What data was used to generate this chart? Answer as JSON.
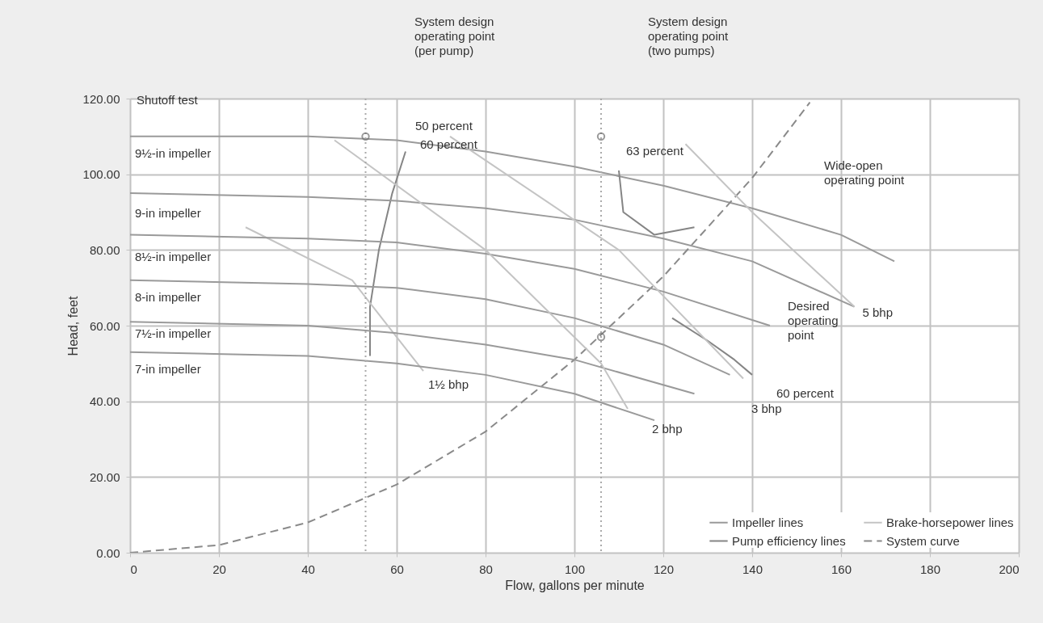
{
  "chart_data": {
    "type": "line",
    "xlabel": "Flow, gallons per minute",
    "ylabel": "Head, feet",
    "xlim": [
      0,
      200
    ],
    "xticks": [
      0,
      20,
      40,
      60,
      80,
      100,
      120,
      140,
      160,
      180,
      200
    ],
    "ylim": [
      0,
      120
    ],
    "yticks": [
      {
        "value": 0,
        "label": "0.00"
      },
      {
        "value": 20,
        "label": "20.00"
      },
      {
        "value": 40,
        "label": "40.00"
      },
      {
        "value": 60,
        "label": "60.00"
      },
      {
        "value": 80,
        "label": "80.00"
      },
      {
        "value": 100,
        "label": "100.00"
      },
      {
        "value": 120,
        "label": "120.00"
      }
    ],
    "grid": true,
    "legend": "bottom right",
    "series": [
      {
        "name": "Impeller lines",
        "color": "#9a9a9a",
        "x": [
          0,
          40,
          60,
          80,
          100,
          120,
          140,
          160,
          172
        ],
        "values": [
          110,
          110,
          109,
          106,
          102,
          97,
          91,
          84,
          77
        ]
      },
      {
        "name": "Pump efficiency lines",
        "color": "#858585",
        "x": [
          62,
          59,
          56,
          54,
          54
        ],
        "values": [
          106,
          95,
          80,
          65,
          52
        ]
      },
      {
        "name": "Brake-horsepower lines",
        "color": "#c4c4c4",
        "x": [
          26,
          50,
          66
        ],
        "values": [
          86,
          72,
          48
        ]
      },
      {
        "name": "System curve",
        "color": "#8a8a8a",
        "line_style": "dashed",
        "x": [
          0,
          20,
          40,
          60,
          80,
          100,
          120,
          140,
          153
        ],
        "values": [
          0,
          2,
          8,
          18,
          32,
          51,
          73,
          99,
          119
        ]
      },
      {
        "color": "#9a9a9a",
        "x": [
          0,
          40,
          60,
          80,
          100,
          120,
          140,
          163
        ],
        "values": [
          95,
          94,
          93,
          91,
          88,
          83,
          77,
          65
        ]
      },
      {
        "color": "#9a9a9a",
        "x": [
          0,
          40,
          60,
          80,
          100,
          120,
          144
        ],
        "values": [
          84,
          83,
          82,
          79,
          75,
          69,
          60
        ]
      },
      {
        "color": "#9a9a9a",
        "x": [
          0,
          40,
          60,
          80,
          100,
          120,
          135
        ],
        "values": [
          72,
          71,
          70,
          67,
          62,
          55,
          47
        ]
      },
      {
        "color": "#9a9a9a",
        "x": [
          0,
          40,
          60,
          80,
          100,
          127
        ],
        "values": [
          61,
          60,
          58,
          55,
          51,
          42
        ]
      },
      {
        "color": "#9a9a9a",
        "x": [
          0,
          40,
          60,
          80,
          100,
          118
        ],
        "values": [
          53,
          52,
          50,
          47,
          42,
          35
        ]
      },
      {
        "color": "#858585",
        "x": [
          110,
          111,
          118,
          127
        ],
        "values": [
          101,
          90,
          84,
          86
        ]
      },
      {
        "color": "#858585",
        "x": [
          122,
          130,
          136,
          140
        ],
        "values": [
          62,
          56,
          51,
          47
        ]
      },
      {
        "color": "#c4c4c4",
        "x": [
          46,
          80,
          106,
          112
        ],
        "values": [
          109,
          80,
          50,
          38
        ]
      },
      {
        "color": "#c4c4c4",
        "x": [
          72,
          110,
          138
        ],
        "values": [
          110,
          80,
          46
        ]
      },
      {
        "color": "#c4c4c4",
        "x": [
          125,
          140,
          163
        ],
        "values": [
          108,
          90,
          65
        ]
      },
      {
        "type": "scatter",
        "marker": "circle",
        "color": "#6e6e6e",
        "x": [
          53,
          106,
          106
        ],
        "values": [
          110,
          110,
          57
        ]
      }
    ],
    "ref_lines": [
      {
        "axis": "x",
        "value": 53,
        "color": "#aaaaaa",
        "line_style": "dotted"
      },
      {
        "axis": "x",
        "value": 106,
        "color": "#aaaaaa",
        "line_style": "dotted"
      }
    ],
    "annotations": [
      {
        "text": "Shutoff test",
        "x": 0,
        "y": 110
      },
      "System design\noperating point\n(per pump)",
      "System design\noperating point\n(two pumps)",
      "Wide-open\noperating point",
      "Desired\noperating\npoint",
      {
        "text": "50 percent",
        "x": 62,
        "y": 110
      },
      "60 percent",
      "63 percent",
      {
        "text": "60 percent",
        "x": 140,
        "y": 47
      },
      {
        "text": "1½ bhp",
        "x": 66,
        "y": 48
      },
      {
        "text": "2 bhp",
        "x": 112,
        "y": 38
      },
      {
        "text": "3 bhp",
        "x": 138,
        "y": 46
      },
      {
        "text": "5 bhp",
        "x": 163,
        "y": 65
      },
      {
        "text": "9½-in impeller",
        "x": 0,
        "y": 110
      },
      {
        "text": "9-in impeller",
        "x": 0,
        "y": 95
      },
      {
        "text": "8½-in impeller",
        "x": 0,
        "y": 84
      },
      {
        "text": "8-in impeller",
        "x": 0,
        "y": 72
      },
      {
        "text": "7½-in impeller",
        "x": 0,
        "y": 61
      },
      {
        "text": "7-in impeller",
        "x": 0,
        "y": 53
      }
    ]
  }
}
